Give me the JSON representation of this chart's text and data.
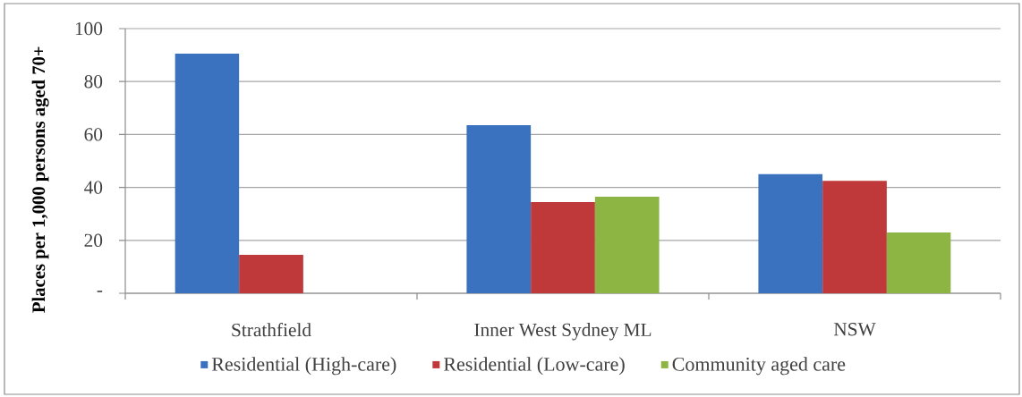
{
  "chart_data": {
    "type": "bar",
    "ylabel": "Places per 1,000 persons aged 70+",
    "categories": [
      "Strathfield",
      "Inner West Sydney ML",
      "NSW"
    ],
    "series": [
      {
        "name": "Residential (High-care)",
        "color": "#3a72c0",
        "values": [
          90.5,
          63.5,
          45
        ]
      },
      {
        "name": "Residential (Low-care)",
        "color": "#c0393a",
        "values": [
          14.5,
          34.5,
          42.5
        ]
      },
      {
        "name": "Community aged care",
        "color": "#8db543",
        "values": [
          null,
          36.5,
          23
        ]
      }
    ],
    "ylim": [
      0,
      100
    ],
    "yticks": [
      {
        "value": 0,
        "label": "-"
      },
      20,
      40,
      60,
      80,
      100
    ],
    "grid": "y",
    "legend": "bottom"
  }
}
